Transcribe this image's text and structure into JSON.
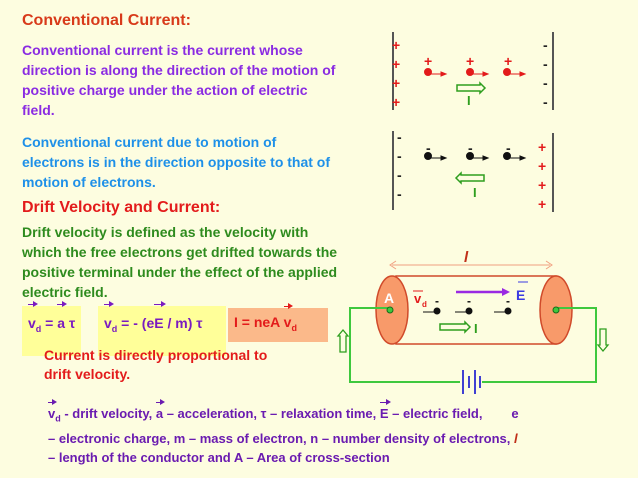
{
  "heading1": "Conventional Current:",
  "para1": "Conventional current is the current whose direction is along the direction of the motion of positive charge under the action of electric field.",
  "para2": "Conventional current due to motion of electrons is in the direction opposite to that of motion of electrons.",
  "heading2": "Drift Velocity and Current:",
  "para3": "Drift velocity is defined as the velocity with which the free electrons get drifted towards the  positive terminal under the effect of the applied electric field.",
  "formulas": {
    "f1_v": "v",
    "f1_sub": "d",
    "f1_mid": " = ",
    "f1_a": "a",
    "f1_end": " τ",
    "f2_v": "v",
    "f2_sub": "d",
    "f2_mid": " = - (e",
    "f2_E": "E",
    "f2_end": " / m) τ",
    "f3": "I = neA  ",
    "f3_v": "v",
    "f3_sub": "d"
  },
  "proportional": "Current is directly proportional to drift velocity.",
  "diagram": {
    "plus": "+",
    "minus": "-",
    "current": "I",
    "area": "A",
    "length": "l",
    "field": "E",
    "vd": "v",
    "vd_sub": "d"
  },
  "footnote": {
    "vd": "v",
    "vd_sub": "d",
    "t1": " - drift velocity, ",
    "a": "a",
    "t2": " – acceleration, τ – relaxation time, ",
    "E": "E",
    "t3": " – electric field,        e",
    "line2": "– electronic charge, m – mass of electron, n – number density of electrons, ",
    "l": "l",
    "line3": "– length of the conductor and A – Area of cross-section"
  },
  "colors": {
    "background": "#fdfde0",
    "heading": "#d83a1a",
    "purple": "#8a2be2",
    "blue": "#1e90e8",
    "green": "#2e8b1e",
    "formula_box": "#ffff99",
    "formula_box_alt": "#fbb98a",
    "conductor": "#f89a6a"
  }
}
